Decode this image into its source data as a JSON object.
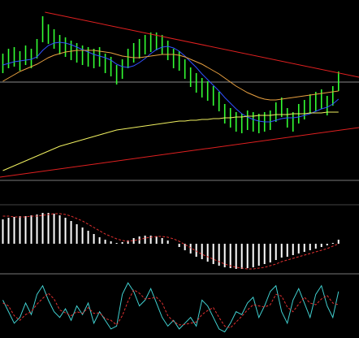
{
  "chart_data": [
    {
      "type": "hilo",
      "xlim": [
        -0.5,
        62.6
      ],
      "ylim": [
        0,
        220
      ],
      "color": "#33ff33",
      "high": [
        154,
        160,
        162,
        157,
        164,
        160,
        172,
        200,
        190,
        184,
        177,
        174,
        170,
        167,
        164,
        162,
        160,
        162,
        154,
        150,
        140,
        147,
        160,
        167,
        172,
        177,
        180,
        180,
        177,
        170,
        160,
        157,
        147,
        137,
        130,
        124,
        120,
        114,
        107,
        92,
        87,
        82,
        80,
        84,
        82,
        80,
        82,
        84,
        94,
        100,
        87,
        82,
        92,
        97,
        104,
        107,
        110,
        102,
        114,
        132
      ],
      "low": [
        130,
        136,
        138,
        133,
        140,
        136,
        148,
        168,
        166,
        160,
        153,
        150,
        146,
        143,
        140,
        138,
        136,
        138,
        130,
        126,
        116,
        123,
        136,
        143,
        148,
        153,
        156,
        158,
        153,
        146,
        136,
        133,
        123,
        113,
        106,
        100,
        96,
        90,
        83,
        68,
        63,
        58,
        56,
        60,
        58,
        56,
        58,
        60,
        70,
        76,
        63,
        58,
        68,
        73,
        80,
        83,
        86,
        78,
        90,
        108
      ],
      "series": [
        {
          "color": "#3050ff",
          "values": [
            140,
            142,
            144,
            145,
            146,
            147,
            150,
            158,
            164,
            167,
            168,
            167,
            165,
            162,
            159,
            156,
            153,
            151,
            149,
            146,
            141,
            138,
            137,
            139,
            143,
            148,
            154,
            159,
            162,
            163,
            161,
            157,
            151,
            144,
            137,
            129,
            122,
            115,
            108,
            100,
            93,
            86,
            80,
            76,
            73,
            71,
            70,
            70,
            72,
            74,
            75,
            75,
            76,
            78,
            80,
            83,
            86,
            88,
            92,
            98
          ]
        },
        {
          "color": "#e8a040",
          "values": [
            120,
            124,
            128,
            132,
            135,
            138,
            141,
            145,
            149,
            152,
            154,
            156,
            157,
            158,
            158,
            158,
            158,
            157,
            156,
            155,
            153,
            151,
            150,
            149,
            149,
            150,
            151,
            152,
            153,
            153,
            153,
            152,
            150,
            147,
            144,
            141,
            137,
            133,
            129,
            124,
            119,
            114,
            110,
            106,
            103,
            100,
            98,
            97,
            97,
            98,
            99,
            100,
            101,
            102,
            103,
            104,
            105,
            106,
            107,
            108
          ]
        },
        {
          "color": "#f0f060",
          "values": [
            10,
            13,
            16,
            19,
            22,
            25,
            28,
            31,
            34,
            37,
            40,
            42,
            44,
            46,
            48,
            50,
            52,
            54,
            56,
            58,
            60,
            61,
            62,
            63,
            64,
            65,
            66,
            67,
            68,
            69,
            70,
            71,
            71,
            72,
            72,
            73,
            73,
            74,
            74,
            75,
            75,
            76,
            76,
            77,
            77,
            78,
            78,
            78,
            79,
            79,
            79,
            80,
            80,
            80,
            81,
            81,
            81,
            82,
            82,
            82
          ]
        }
      ],
      "trendlines": [
        {
          "color": "#e02020",
          "x": [
            7.4,
            62.6
          ],
          "y": [
            205,
            125
          ]
        },
        {
          "color": "#e02020",
          "x": [
            -0.5,
            62.6
          ],
          "y": [
            2,
            63
          ]
        }
      ],
      "hline": {
        "value": 119,
        "color": "#8a8a8a"
      }
    },
    {
      "type": "bar",
      "xlim": [
        -0.5,
        62.6
      ],
      "ylim": [
        -35,
        45
      ],
      "color": "#ffffff",
      "values": [
        30,
        32,
        33,
        34,
        34,
        35,
        36,
        38,
        38,
        37,
        35,
        32,
        28,
        24,
        20,
        16,
        12,
        8,
        5,
        3,
        1,
        2,
        4,
        7,
        9,
        10,
        10,
        9,
        7,
        4,
        0,
        -4,
        -8,
        -12,
        -16,
        -19,
        -22,
        -25,
        -27,
        -29,
        -30,
        -31,
        -31,
        -30,
        -29,
        -27,
        -25,
        -23,
        -20,
        -17,
        -16,
        -14,
        -12,
        -10,
        -8,
        -6,
        -4,
        -2,
        1,
        5
      ],
      "series": [
        {
          "color": "#e03030",
          "dash": true,
          "values": [
            34,
            34,
            33,
            33,
            33,
            34,
            34,
            35,
            36,
            37,
            37,
            36,
            34,
            31,
            28,
            24,
            20,
            16,
            12,
            9,
            6,
            4,
            3,
            4,
            5,
            7,
            8,
            9,
            9,
            8,
            6,
            3,
            -1,
            -5,
            -9,
            -13,
            -16,
            -19,
            -22,
            -25,
            -27,
            -29,
            -30,
            -31,
            -31,
            -30,
            -29,
            -27,
            -25,
            -22,
            -20,
            -18,
            -16,
            -14,
            -12,
            -10,
            -8,
            -6,
            -3,
            0
          ]
        }
      ]
    },
    {
      "type": "line",
      "xlim": [
        -0.5,
        62.6
      ],
      "ylim": [
        0,
        100
      ],
      "series": [
        {
          "color": "#40d0d0",
          "values": [
            60,
            40,
            20,
            30,
            55,
            35,
            70,
            85,
            60,
            40,
            30,
            45,
            25,
            50,
            35,
            55,
            20,
            40,
            25,
            10,
            15,
            70,
            90,
            75,
            50,
            60,
            80,
            55,
            30,
            15,
            25,
            10,
            20,
            30,
            15,
            60,
            50,
            30,
            10,
            5,
            20,
            40,
            35,
            55,
            65,
            30,
            50,
            75,
            85,
            40,
            20,
            60,
            80,
            55,
            30,
            70,
            85,
            50,
            30,
            75
          ]
        },
        {
          "color": "#e03030",
          "dash": true,
          "values": [
            55,
            50,
            33,
            25,
            35,
            40,
            53,
            63,
            72,
            62,
            43,
            38,
            33,
            40,
            37,
            47,
            37,
            38,
            28,
            25,
            17,
            33,
            58,
            78,
            72,
            62,
            63,
            65,
            55,
            33,
            23,
            17,
            18,
            20,
            22,
            35,
            42,
            47,
            30,
            15,
            12,
            22,
            32,
            43,
            52,
            50,
            48,
            52,
            70,
            67,
            48,
            40,
            53,
            65,
            55,
            52,
            62,
            68,
            55,
            52
          ]
        }
      ]
    }
  ]
}
